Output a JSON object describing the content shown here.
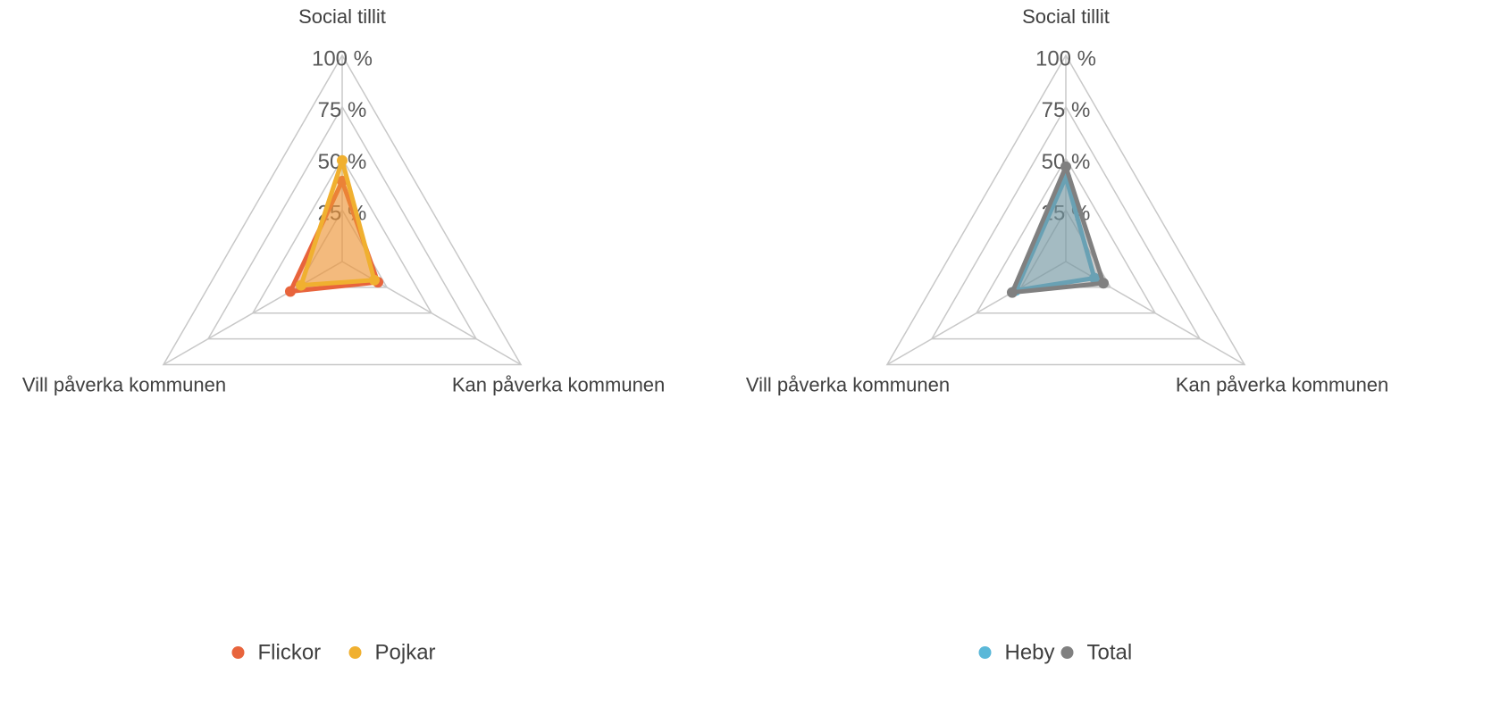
{
  "chart_data": [
    {
      "type": "radar",
      "categories": [
        "Social tillit",
        "Kan påverka kommunen",
        "Vill påverka kommunen"
      ],
      "rlim": [
        0,
        100
      ],
      "rticks": [
        {
          "value": 25,
          "label": "25 %"
        },
        {
          "value": 50,
          "label": "50 %"
        },
        {
          "value": 75,
          "label": "75 %"
        },
        {
          "value": 100,
          "label": "100 %"
        }
      ],
      "grid": true,
      "series": [
        {
          "name": "Flickor",
          "color": "#e8643c",
          "values": [
            39,
            20,
            29
          ]
        },
        {
          "name": "Pojkar",
          "color": "#f0b030",
          "values": [
            49,
            18,
            23
          ]
        }
      ]
    },
    {
      "type": "radar",
      "categories": [
        "Social tillit",
        "Kan påverka kommunen",
        "Vill påverka kommunen"
      ],
      "rlim": [
        0,
        100
      ],
      "rticks": [
        {
          "value": 25,
          "label": "25 %"
        },
        {
          "value": 50,
          "label": "50 %"
        },
        {
          "value": 75,
          "label": "75 %"
        },
        {
          "value": 100,
          "label": "100 %"
        }
      ],
      "grid": true,
      "series": [
        {
          "name": "Heby",
          "color": "#5bb8d8",
          "values": [
            41,
            16,
            28
          ]
        },
        {
          "name": "Total",
          "color": "#808080",
          "values": [
            46,
            21,
            30
          ]
        }
      ]
    }
  ]
}
